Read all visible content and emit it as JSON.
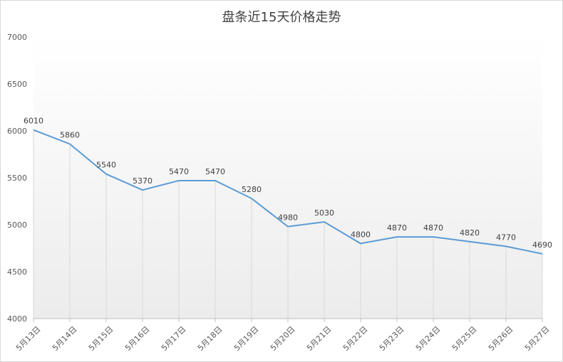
{
  "chart_data": {
    "type": "line",
    "title": "盘条近15天价格走势",
    "categories": [
      "5月13日",
      "5月14日",
      "5月15日",
      "5月16日",
      "5月17日",
      "5月18日",
      "5月19日",
      "5月20日",
      "5月21日",
      "5月22日",
      "5月23日",
      "5月24日",
      "5月25日",
      "5月26日",
      "5月27日"
    ],
    "values": [
      6010,
      5860,
      5540,
      5370,
      5470,
      5470,
      5280,
      4980,
      5030,
      4800,
      4870,
      4870,
      4820,
      4770,
      4690
    ],
    "ylim": [
      4000,
      7000
    ],
    "yticks": [
      "4000",
      "4500",
      "5000",
      "5500",
      "6000",
      "6500",
      "7000"
    ],
    "line_color": "#5b9bd5",
    "grid": "vertical drop lines",
    "legend": "none"
  }
}
